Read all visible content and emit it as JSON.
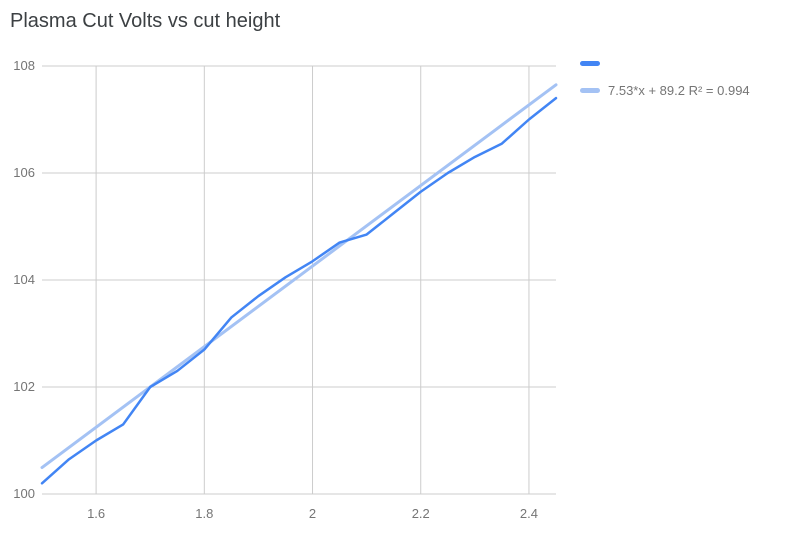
{
  "chart_data": {
    "type": "line",
    "title": "Plasma Cut Volts vs cut height",
    "x": [
      1.5,
      1.55,
      1.6,
      1.65,
      1.7,
      1.75,
      1.8,
      1.85,
      1.9,
      1.95,
      2.0,
      2.05,
      2.1,
      2.15,
      2.2,
      2.25,
      2.3,
      2.35,
      2.4,
      2.45
    ],
    "series": [
      {
        "name": "",
        "color": "#4285f4",
        "values": [
          100.2,
          100.65,
          101.0,
          101.3,
          102.0,
          102.3,
          102.7,
          103.3,
          103.7,
          104.05,
          104.35,
          104.7,
          104.85,
          105.25,
          105.65,
          106.0,
          106.3,
          106.55,
          107.0,
          107.4
        ]
      }
    ],
    "trendline": {
      "label": "7.53*x + 89.2 R² = 0.994",
      "slope": 7.53,
      "intercept": 89.2,
      "r2": 0.994,
      "color": "#a4c2f4"
    },
    "xlim": [
      1.5,
      2.45
    ],
    "ylim": [
      100,
      108
    ],
    "xticks": [
      {
        "v": 1.6,
        "label": "1.6"
      },
      {
        "v": 1.8,
        "label": "1.8"
      },
      {
        "v": 2.0,
        "label": "2"
      },
      {
        "v": 2.2,
        "label": "2.2"
      },
      {
        "v": 2.4,
        "label": "2.4"
      }
    ],
    "yticks": [
      {
        "v": 100,
        "label": "100"
      },
      {
        "v": 102,
        "label": "102"
      },
      {
        "v": 104,
        "label": "104"
      },
      {
        "v": 106,
        "label": "106"
      },
      {
        "v": 108,
        "label": "108"
      }
    ],
    "grid": true,
    "legend_position": "top-right",
    "colors": {
      "gridline": "#cccccc",
      "tick_label": "#757575",
      "title": "#3c4043"
    }
  }
}
